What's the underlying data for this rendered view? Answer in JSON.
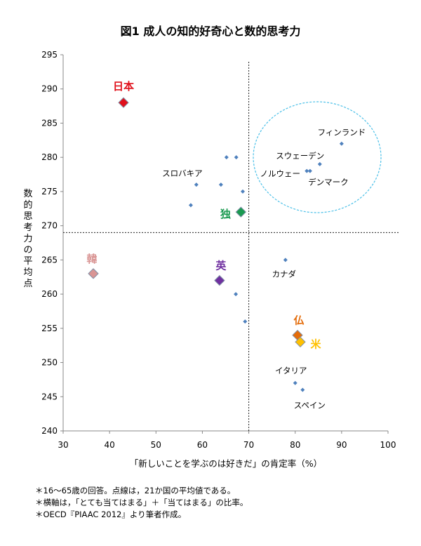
{
  "chart_data": {
    "type": "scatter",
    "title": "図1 成人の知的好奇心と数的思考力",
    "xlabel": "「新しいことを学ぶのは好きだ」の肯定率（%）",
    "ylabel": "数的思考力の平均点",
    "xlim": [
      30,
      100
    ],
    "ylim": [
      240,
      295
    ],
    "xticks": [
      "30",
      "40",
      "50",
      "60",
      "70",
      "80",
      "90",
      "100"
    ],
    "yticks": [
      "240",
      "245",
      "250",
      "255",
      "260",
      "265",
      "270",
      "275",
      "280",
      "285",
      "290",
      "295"
    ],
    "grid": false,
    "mean_lines": {
      "x": 70,
      "y": 269
    },
    "highlight_circle_label": "",
    "points": [
      {
        "label": "日本",
        "x": 43.0,
        "y": 288,
        "highlight": true,
        "color": "#e0101b"
      },
      {
        "label": "独",
        "x": 68.3,
        "y": 272,
        "highlight": true,
        "color": "#1a9a50"
      },
      {
        "label": "韓",
        "x": 36.5,
        "y": 263,
        "highlight": true,
        "color": "#d99594"
      },
      {
        "label": "英",
        "x": 63.7,
        "y": 262,
        "highlight": true,
        "color": "#7030a0"
      },
      {
        "label": "仏",
        "x": 80.5,
        "y": 254,
        "highlight": true,
        "color": "#e46c0a"
      },
      {
        "label": "米",
        "x": 81.1,
        "y": 253,
        "highlight": true,
        "color": "#ffc000"
      },
      {
        "label": "フィンランド",
        "x": 90.0,
        "y": 282
      },
      {
        "label": "スウェーデン",
        "x": 85.3,
        "y": 279
      },
      {
        "label": "ノルウェー",
        "x": 82.5,
        "y": 278
      },
      {
        "label": "デンマーク",
        "x": 83.2,
        "y": 278
      },
      {
        "label": "スロバキア",
        "x": 58.7,
        "y": 276
      },
      {
        "label": "カナダ",
        "x": 77.9,
        "y": 265
      },
      {
        "label": "イタリア",
        "x": 80.0,
        "y": 247
      },
      {
        "label": "スペイン",
        "x": 81.6,
        "y": 246
      },
      {
        "label": "",
        "x": 65.2,
        "y": 280
      },
      {
        "label": "",
        "x": 67.3,
        "y": 280
      },
      {
        "label": "",
        "x": 64.0,
        "y": 276
      },
      {
        "label": "",
        "x": 68.7,
        "y": 275
      },
      {
        "label": "",
        "x": 57.5,
        "y": 273
      },
      {
        "label": "",
        "x": 67.2,
        "y": 260
      },
      {
        "label": "",
        "x": 69.2,
        "y": 256
      }
    ],
    "point_color": "#4f81bd",
    "circle_color": "#4bc0e8"
  },
  "notes": [
    "＊16～65歳の回答。点線は，21か国の平均値である。",
    "＊横軸は，「とても当てはまる」＋「当てはまる」の比率。",
    "＊OECD『PIAAC 2012』より筆者作成。"
  ]
}
